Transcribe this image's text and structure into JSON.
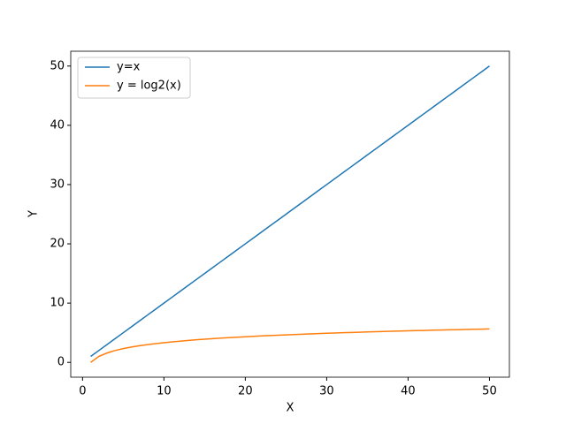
{
  "chart_data": {
    "type": "line",
    "xlabel": "X",
    "ylabel": "Y",
    "x": [
      1,
      2,
      3,
      4,
      5,
      6,
      7,
      8,
      9,
      10,
      11,
      12,
      13,
      14,
      15,
      16,
      17,
      18,
      19,
      20,
      21,
      22,
      23,
      24,
      25,
      26,
      27,
      28,
      29,
      30,
      31,
      32,
      33,
      34,
      35,
      36,
      37,
      38,
      39,
      40,
      41,
      42,
      43,
      44,
      45,
      46,
      47,
      48,
      49,
      50
    ],
    "series": [
      {
        "name": "y=x",
        "color": "#1f77b4",
        "values": [
          1,
          2,
          3,
          4,
          5,
          6,
          7,
          8,
          9,
          10,
          11,
          12,
          13,
          14,
          15,
          16,
          17,
          18,
          19,
          20,
          21,
          22,
          23,
          24,
          25,
          26,
          27,
          28,
          29,
          30,
          31,
          32,
          33,
          34,
          35,
          36,
          37,
          38,
          39,
          40,
          41,
          42,
          43,
          44,
          45,
          46,
          47,
          48,
          49,
          50
        ]
      },
      {
        "name": "y = log2(x)",
        "color": "#ff7f0e",
        "values": [
          0,
          1,
          1.58,
          2,
          2.32,
          2.58,
          2.81,
          3,
          3.17,
          3.32,
          3.46,
          3.58,
          3.7,
          3.81,
          3.91,
          4,
          4.09,
          4.17,
          4.25,
          4.32,
          4.39,
          4.46,
          4.52,
          4.58,
          4.64,
          4.7,
          4.75,
          4.81,
          4.86,
          4.91,
          4.95,
          5,
          5.04,
          5.09,
          5.13,
          5.17,
          5.21,
          5.25,
          5.29,
          5.32,
          5.36,
          5.39,
          5.43,
          5.46,
          5.49,
          5.52,
          5.55,
          5.58,
          5.61,
          5.64
        ]
      }
    ],
    "xlim": [
      -1.45,
      52.45
    ],
    "ylim": [
      -2.5,
      52.5
    ],
    "xticks": [
      0,
      10,
      20,
      30,
      40,
      50
    ],
    "yticks": [
      0,
      10,
      20,
      30,
      40,
      50
    ],
    "legend": "upper left",
    "grid": false
  }
}
